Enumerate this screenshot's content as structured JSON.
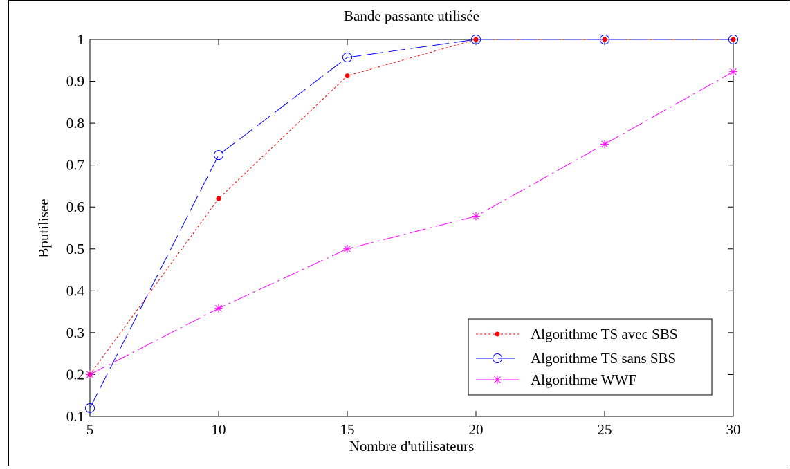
{
  "chart_data": {
    "type": "line",
    "title": "Bande passante utilisée",
    "xlabel": "Nombre d'utilisateurs",
    "ylabel": "Bputilisee",
    "xlim": [
      5,
      30
    ],
    "ylim": [
      0.1,
      1
    ],
    "x_ticks": [
      "5",
      "10",
      "15",
      "20",
      "25",
      "30"
    ],
    "y_ticks": [
      "0.1",
      "0.2",
      "0.3",
      "0.4",
      "0.5",
      "0.6",
      "0.7",
      "0.8",
      "0.9",
      "1"
    ],
    "grid": false,
    "legend_position": "bottom-right",
    "x": [
      5,
      10,
      15,
      20,
      25,
      30
    ],
    "series": [
      {
        "name": "Algorithme TS avec SBS",
        "values": [
          0.2,
          0.62,
          0.913,
          1.0,
          1.0,
          1.0
        ],
        "color": "#ff0000",
        "line_style": "dotted",
        "marker": "filled-dot"
      },
      {
        "name": "Algorithme TS sans SBS",
        "values": [
          0.12,
          0.724,
          0.957,
          1.0,
          1.0,
          1.0
        ],
        "color": "#0000ff",
        "line_style": "long-dash",
        "marker": "open-circle"
      },
      {
        "name": "Algorithme WWF",
        "values": [
          0.2,
          0.358,
          0.5,
          0.578,
          0.75,
          0.923
        ],
        "color": "#ff00ff",
        "line_style": "dash-dot",
        "marker": "star"
      }
    ]
  }
}
